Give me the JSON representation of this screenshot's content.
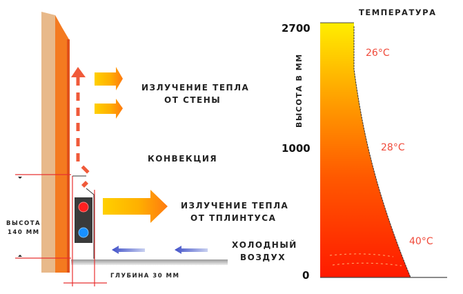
{
  "labels": {
    "wall_radiation_1": "ИЗЛУЧЕНИЕ ТЕПЛА",
    "wall_radiation_2": "ОТ СТЕНЫ",
    "convection": "КОНВЕКЦИЯ",
    "skirting_radiation_1": "ИЗЛУЧЕНИЕ ТЕПЛА",
    "skirting_radiation_2": "ОТ ТПЛИНТУСА",
    "cold_air_1": "ХОЛОДНЫЙ",
    "cold_air_2": "ВОЗДУХ",
    "height_1": "ВЫСОТА",
    "height_2": "140 ММ",
    "depth": "ГЛУБИНА 30 ММ"
  },
  "temperature_chart": {
    "title": "ТЕМПЕРАТУРА",
    "ylabel": "ВЫСОТА В ММ",
    "ticks": [
      "2700",
      "1000",
      "0"
    ],
    "temps": [
      "26°C",
      "28°C",
      "40°C"
    ]
  },
  "colors": {
    "wall_orange": "#f47a20",
    "wall_tan": "#e8b98a",
    "convection_red": "#f05a3a",
    "hot_red": "#ff2000",
    "warm_yellow": "#ffe800",
    "cold_blue": "#5060d0"
  }
}
